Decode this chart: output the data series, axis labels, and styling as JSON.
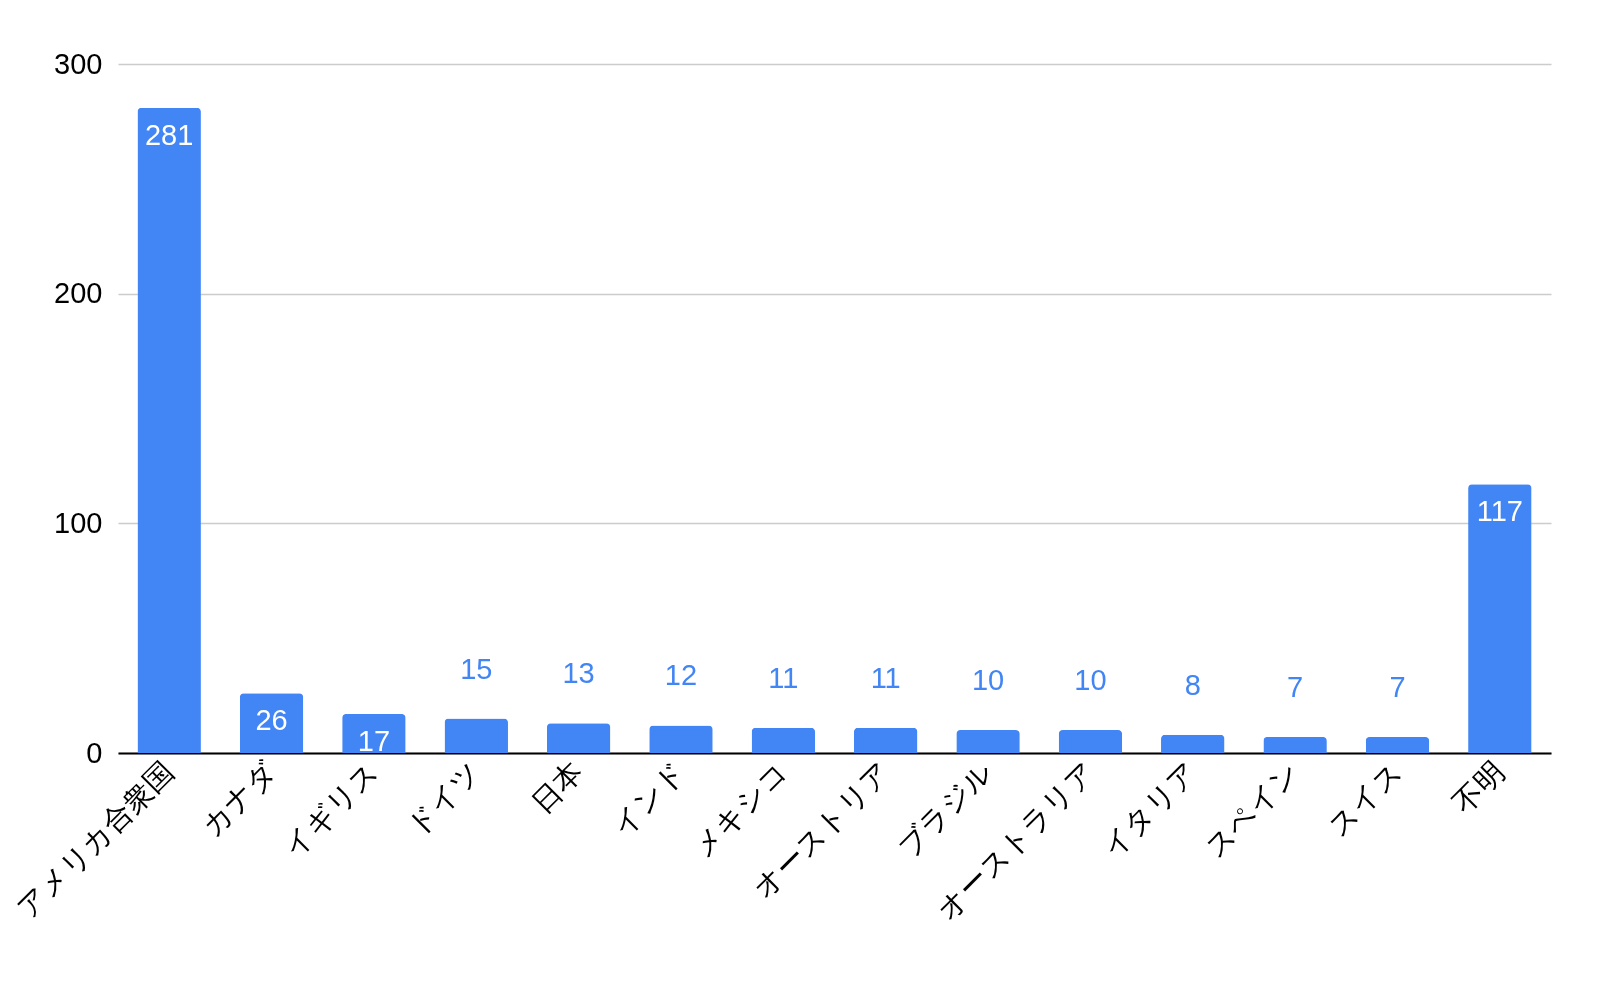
{
  "chart_data": {
    "type": "bar",
    "categories": [
      "アメリカ合衆国",
      "カナダ",
      "イギリス",
      "ドイツ",
      "日本",
      "インド",
      "メキシコ",
      "オーストリア",
      "ブラジル",
      "オーストラリア",
      "イタリア",
      "スペイン",
      "スイス",
      "不明"
    ],
    "values": [
      281,
      26,
      17,
      15,
      13,
      12,
      11,
      11,
      10,
      10,
      8,
      7,
      7,
      117
    ],
    "color": "#4285f4",
    "ylim": [
      0,
      300
    ],
    "yticks": [
      0,
      100,
      200,
      300
    ],
    "grid": "y",
    "data_labels": true
  }
}
